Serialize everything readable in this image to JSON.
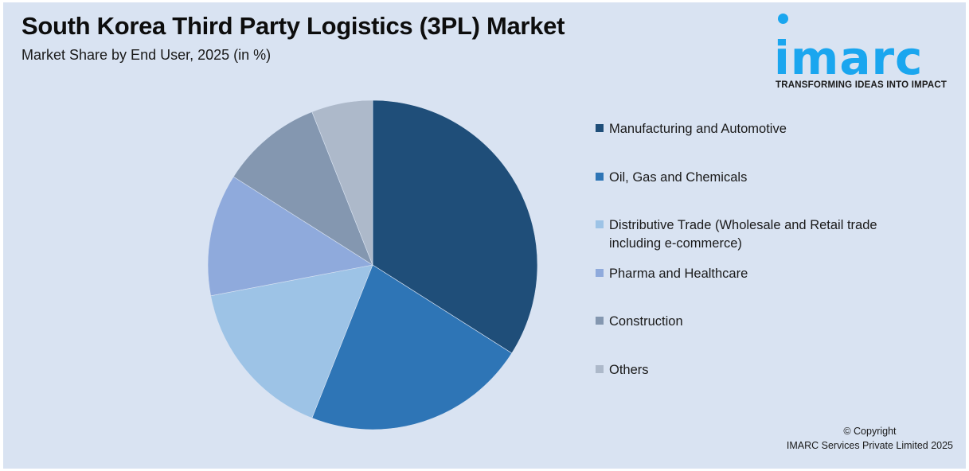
{
  "header": {
    "title": "South Korea Third Party Logistics (3PL) Market",
    "subtitle": "Market Share by End User, 2025 (in %)"
  },
  "logo": {
    "wordmark": "imarc",
    "tagline": "TRANSFORMING IDEAS INTO IMPACT",
    "color": "#1aa6ef"
  },
  "legend": {
    "items": [
      {
        "label": "Manufacturing and Automotive",
        "color": "#1f4e79"
      },
      {
        "label": "Oil, Gas and Chemicals",
        "color": "#2e75b6"
      },
      {
        "label": "Distributive Trade (Wholesale and Retail trade including e-commerce)",
        "color": "#9dc3e6"
      },
      {
        "label": "Pharma and Healthcare",
        "color": "#8faadc"
      },
      {
        "label": "Construction",
        "color": "#8497b0"
      },
      {
        "label": "Others",
        "color": "#adb9ca"
      }
    ]
  },
  "footer": {
    "copyright_line1": "© Copyright",
    "copyright_line2": "IMARC Services Private Limited 2025"
  },
  "chart_data": {
    "type": "pie",
    "title": "South Korea Third Party Logistics (3PL) Market",
    "subtitle": "Market Share by End User, 2025 (in %)",
    "categories": [
      "Manufacturing and Automotive",
      "Oil, Gas and Chemicals",
      "Distributive Trade (Wholesale and Retail trade including e-commerce)",
      "Pharma and Healthcare",
      "Construction",
      "Others"
    ],
    "values": [
      34,
      22,
      16,
      12,
      10,
      6
    ],
    "colors": [
      "#1f4e79",
      "#2e75b6",
      "#9dc3e6",
      "#8faadc",
      "#8497b0",
      "#adb9ca"
    ],
    "start_angle": "12 o'clock, clockwise",
    "legend_position": "right",
    "data_labels": false
  }
}
